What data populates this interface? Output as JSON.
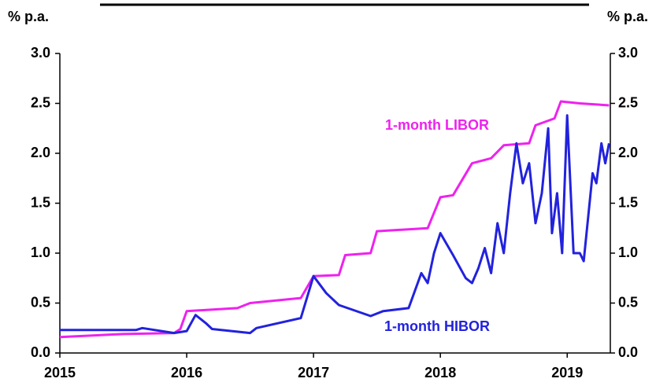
{
  "chart_data": {
    "type": "line",
    "y_label": "% p.a.",
    "y2_label": "% p.a.",
    "annotations": [
      "1-month LIBOR",
      "1-month HIBOR"
    ],
    "xlim": [
      2015,
      2019.34
    ],
    "xticks": [
      2015,
      2016,
      2017,
      2018,
      2019
    ],
    "ylim": [
      0,
      3
    ],
    "yticks": [
      {
        "value": 0,
        "label": "0.0"
      },
      0.5,
      {
        "value": 1,
        "label": "1.0"
      },
      1.5,
      {
        "value": 2,
        "label": "2.0"
      },
      2.5,
      {
        "value": 3,
        "label": "3.0"
      }
    ],
    "y2lim": [
      0,
      3
    ],
    "y2ticks": [
      {
        "value": 0,
        "label": "0.0"
      },
      0.5,
      {
        "value": 1,
        "label": "1.0"
      },
      1.5,
      {
        "value": 2,
        "label": "2.0"
      },
      2.5,
      {
        "value": 3,
        "label": "3.0"
      }
    ],
    "series": [
      {
        "name": "1-month LIBOR",
        "color": "#ee22ee",
        "x": [
          2015.0,
          2015.5,
          2015.9,
          2015.95,
          2016.0,
          2016.4,
          2016.5,
          2016.9,
          2017.0,
          2017.2,
          2017.25,
          2017.45,
          2017.5,
          2017.9,
          2018.0,
          2018.1,
          2018.25,
          2018.4,
          2018.5,
          2018.7,
          2018.75,
          2018.9,
          2018.95,
          2019.1,
          2019.33
        ],
        "values": [
          0.16,
          0.19,
          0.2,
          0.24,
          0.42,
          0.45,
          0.5,
          0.55,
          0.77,
          0.78,
          0.98,
          1.0,
          1.22,
          1.25,
          1.56,
          1.58,
          1.9,
          1.95,
          2.08,
          2.1,
          2.28,
          2.35,
          2.52,
          2.5,
          2.48
        ]
      },
      {
        "name": "1-month HIBOR",
        "color": "#2222dd",
        "x": [
          2015.0,
          2015.6,
          2015.65,
          2015.9,
          2016.0,
          2016.07,
          2016.15,
          2016.2,
          2016.5,
          2016.55,
          2016.9,
          2017.0,
          2017.1,
          2017.2,
          2017.45,
          2017.55,
          2017.75,
          2017.85,
          2017.9,
          2017.95,
          2018.0,
          2018.1,
          2018.2,
          2018.25,
          2018.3,
          2018.35,
          2018.4,
          2018.45,
          2018.5,
          2018.55,
          2018.6,
          2018.65,
          2018.7,
          2018.75,
          2018.8,
          2018.85,
          2018.88,
          2018.92,
          2018.96,
          2019.0,
          2019.05,
          2019.1,
          2019.13,
          2019.2,
          2019.23,
          2019.27,
          2019.3,
          2019.33
        ],
        "values": [
          0.23,
          0.23,
          0.25,
          0.2,
          0.22,
          0.38,
          0.3,
          0.24,
          0.2,
          0.25,
          0.35,
          0.77,
          0.6,
          0.48,
          0.37,
          0.42,
          0.45,
          0.8,
          0.7,
          1.0,
          1.2,
          0.98,
          0.75,
          0.7,
          0.85,
          1.05,
          0.8,
          1.3,
          1.0,
          1.6,
          2.1,
          1.7,
          1.9,
          1.3,
          1.6,
          2.25,
          1.2,
          1.6,
          1.0,
          2.38,
          1.0,
          1.0,
          0.92,
          1.8,
          1.7,
          2.1,
          1.9,
          2.1
        ]
      }
    ]
  }
}
